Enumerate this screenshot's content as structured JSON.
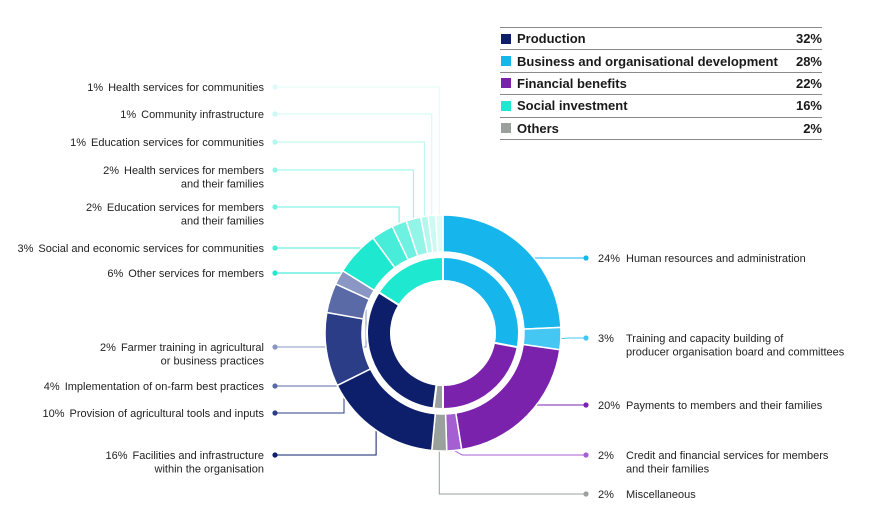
{
  "chart_data": {
    "type": "pie",
    "style": "nested donut",
    "legend_placement": "top-right",
    "title": "",
    "inner_ring": [
      {
        "name": "Production",
        "value": 32,
        "label": "32%",
        "color": "#0d1f6b"
      },
      {
        "name": "Business and organisational development",
        "value": 28,
        "label": "28%",
        "color": "#16b6ec"
      },
      {
        "name": "Financial benefits",
        "value": 22,
        "label": "22%",
        "color": "#7a22ac"
      },
      {
        "name": "Social investment",
        "value": 16,
        "label": "16%",
        "color": "#1ee8d0"
      },
      {
        "name": "Others",
        "value": 2,
        "label": "2%",
        "color": "#9aa09c"
      }
    ],
    "outer_ring": [
      {
        "pct": "24%",
        "value": 24,
        "lines": [
          "Human resources and administration"
        ],
        "group": "Business and organisational development",
        "color": "#16b6ec"
      },
      {
        "pct": "3%",
        "value": 3,
        "lines": [
          "Training and capacity building of",
          "producer organisation board and committees"
        ],
        "group": "Business and organisational development",
        "color": "#45c7f3"
      },
      {
        "pct": "20%",
        "value": 20,
        "lines": [
          "Payments to members and their families"
        ],
        "group": "Financial benefits",
        "color": "#7a22ac"
      },
      {
        "pct": "2%",
        "value": 2,
        "lines": [
          "Credit and financial services for members",
          "and their families"
        ],
        "group": "Financial benefits",
        "color": "#a45fd0"
      },
      {
        "pct": "2%",
        "value": 2,
        "lines": [
          "Miscellaneous"
        ],
        "group": "Others",
        "color": "#9aa09c"
      },
      {
        "pct": "16%",
        "value": 16,
        "lines": [
          "Facilities and infrastructure",
          "within the organisation"
        ],
        "group": "Production",
        "color": "#0d1f6b"
      },
      {
        "pct": "10%",
        "value": 10,
        "lines": [
          "Provision of agricultural tools and inputs"
        ],
        "group": "Production",
        "color": "#2b3d86"
      },
      {
        "pct": "4%",
        "value": 4,
        "lines": [
          "Implementation of on-farm best practices"
        ],
        "group": "Production",
        "color": "#5a6aa6"
      },
      {
        "pct": "2%",
        "value": 2,
        "lines": [
          "Farmer training in agricultural",
          "or business practices"
        ],
        "group": "Production",
        "color": "#8a96c4"
      },
      {
        "pct": "6%",
        "value": 6,
        "lines": [
          "Other services for members"
        ],
        "group": "Social investment",
        "color": "#1ee8d0"
      },
      {
        "pct": "3%",
        "value": 3,
        "lines": [
          "Social and economic services for communities"
        ],
        "group": "Social investment",
        "color": "#47edd9"
      },
      {
        "pct": "2%",
        "value": 2,
        "lines": [
          "Education services for members",
          "and their families"
        ],
        "group": "Social investment",
        "color": "#6ef1e1"
      },
      {
        "pct": "2%",
        "value": 2,
        "lines": [
          "Health services for members",
          "and their families"
        ],
        "group": "Social investment",
        "color": "#93f4e8"
      },
      {
        "pct": "1%",
        "value": 1,
        "lines": [
          "Education services for communities"
        ],
        "group": "Social investment",
        "color": "#b5f7ee"
      },
      {
        "pct": "1%",
        "value": 1,
        "lines": [
          "Community infrastructure"
        ],
        "group": "Social investment",
        "color": "#ccf9f3"
      },
      {
        "pct": "1%",
        "value": 1,
        "lines": [
          "Health services for communities"
        ],
        "group": "Social investment",
        "color": "#e0fbf7"
      }
    ]
  }
}
